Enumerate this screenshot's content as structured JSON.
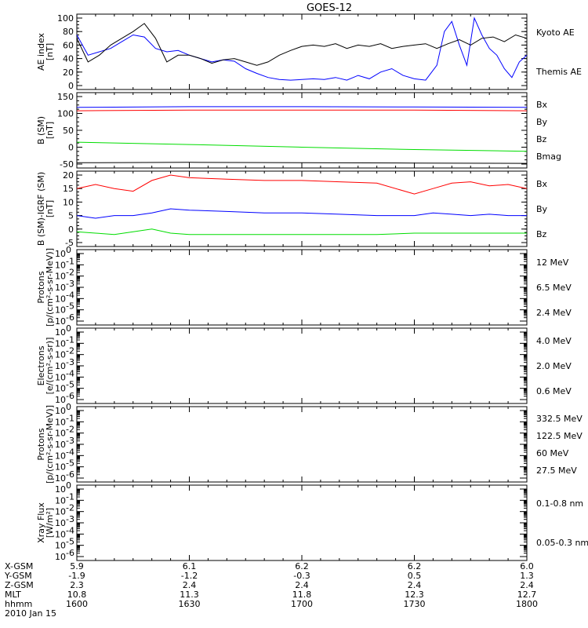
{
  "title": "GOES-12",
  "colors": {
    "black": "#000000",
    "blue": "#0000ff",
    "red": "#ff0000",
    "green": "#00dd00",
    "darkred": "#cc0000",
    "yellow": "#ffd400",
    "cyan": "#00a0ff"
  },
  "ephemeris": {
    "row_labels": [
      "X-GSM",
      "Y-GSM",
      "Z-GSM",
      "MLT",
      "hhmm"
    ],
    "date": "2010 Jan 15",
    "columns": [
      {
        "values": [
          "5.9",
          "-1.9",
          "2.3",
          "10.8",
          "1600"
        ]
      },
      {
        "values": [
          "6.1",
          "-1.2",
          "2.4",
          "11.3",
          "1630"
        ]
      },
      {
        "values": [
          "6.2",
          "-0.3",
          "2.4",
          "11.8",
          "1700"
        ]
      },
      {
        "values": [
          "6.2",
          "0.5",
          "2.4",
          "12.3",
          "1730"
        ]
      },
      {
        "values": [
          "6.0",
          "1.3",
          "2.4",
          "12.7",
          "1800"
        ]
      }
    ]
  },
  "chart_data": [
    {
      "type": "line",
      "ylabel": "AE index\n[nT]",
      "ylim": [
        0,
        100
      ],
      "yticks": [
        "0",
        "20",
        "40",
        "60",
        "80",
        "100"
      ],
      "xlim": [
        0,
        120
      ],
      "log": false,
      "series": [
        {
          "name": "Kyoto AE",
          "color": "#0000ff",
          "x": [
            0,
            3,
            6,
            9,
            12,
            15,
            18,
            21,
            24,
            27,
            30,
            33,
            36,
            39,
            42,
            45,
            48,
            51,
            54,
            57,
            60,
            63,
            66,
            69,
            72,
            75,
            78,
            81,
            84,
            87,
            90,
            93,
            96,
            98,
            100,
            102,
            104,
            106,
            108,
            110,
            112,
            114,
            116,
            118,
            120
          ],
          "y": [
            75,
            45,
            50,
            55,
            65,
            75,
            72,
            55,
            50,
            52,
            45,
            40,
            35,
            38,
            36,
            25,
            18,
            12,
            9,
            8,
            9,
            10,
            9,
            12,
            8,
            15,
            10,
            20,
            25,
            15,
            10,
            8,
            30,
            80,
            95,
            60,
            30,
            100,
            75,
            55,
            45,
            25,
            12,
            35,
            45
          ]
        },
        {
          "name": "Themis AE",
          "color": "#000000",
          "x": [
            0,
            3,
            6,
            9,
            12,
            15,
            18,
            21,
            24,
            27,
            30,
            33,
            36,
            39,
            42,
            45,
            48,
            51,
            54,
            57,
            60,
            63,
            66,
            69,
            72,
            75,
            78,
            81,
            84,
            87,
            90,
            93,
            96,
            99,
            102,
            105,
            108,
            111,
            114,
            117,
            120
          ],
          "y": [
            70,
            35,
            45,
            60,
            70,
            80,
            92,
            70,
            35,
            45,
            45,
            40,
            33,
            38,
            40,
            35,
            30,
            35,
            45,
            52,
            58,
            60,
            58,
            62,
            55,
            60,
            58,
            62,
            55,
            58,
            60,
            62,
            55,
            62,
            68,
            60,
            70,
            72,
            65,
            75,
            70
          ]
        }
      ]
    },
    {
      "type": "line",
      "ylabel": "B (SM)\n[nT]",
      "ylim": [
        -50,
        150
      ],
      "yticks": [
        "-50",
        "0",
        "50",
        "100",
        "150"
      ],
      "xlim": [
        0,
        120
      ],
      "log": false,
      "series": [
        {
          "name": "Bx",
          "color": "#0000ff",
          "x": [
            0,
            30,
            60,
            90,
            120
          ],
          "y": [
            118,
            120,
            120,
            119,
            118
          ]
        },
        {
          "name": "By",
          "color": "#00dd00",
          "x": [
            0,
            30,
            60,
            90,
            120
          ],
          "y": [
            15,
            8,
            0,
            -7,
            -12
          ]
        },
        {
          "name": "Bz",
          "color": "#ff0000",
          "x": [
            0,
            30,
            60,
            90,
            120
          ],
          "y": [
            108,
            110,
            110,
            110,
            108
          ]
        },
        {
          "name": "Bmag",
          "color": "#000000",
          "x": [
            0,
            30,
            60,
            90,
            120
          ],
          "y": [
            -46,
            -45,
            -46,
            -47,
            -48
          ]
        }
      ]
    },
    {
      "type": "line",
      "ylabel": "B (SM)-IGRF (SM)\n[nT]",
      "ylim": [
        -5,
        20
      ],
      "yticks": [
        "-5",
        "0",
        "5",
        "10",
        "15",
        "20"
      ],
      "xlim": [
        0,
        120
      ],
      "log": false,
      "series": [
        {
          "name": "Bx",
          "color": "#0000ff",
          "x": [
            0,
            5,
            10,
            15,
            20,
            25,
            30,
            40,
            50,
            60,
            70,
            80,
            90,
            95,
            100,
            105,
            110,
            115,
            120
          ],
          "y": [
            5,
            4,
            5,
            5,
            6,
            7.5,
            7,
            6.5,
            6,
            6,
            5.5,
            5,
            5,
            6,
            5.5,
            5,
            5.5,
            5,
            5
          ]
        },
        {
          "name": "By",
          "color": "#00dd00",
          "x": [
            0,
            5,
            10,
            15,
            20,
            25,
            30,
            40,
            50,
            60,
            70,
            80,
            90,
            100,
            110,
            120
          ],
          "y": [
            -1,
            -1.5,
            -2,
            -1,
            0,
            -1.5,
            -2,
            -2,
            -2,
            -2,
            -2,
            -2,
            -1.5,
            -1.5,
            -1.5,
            -1.5
          ]
        },
        {
          "name": "Bz",
          "color": "#ff0000",
          "x": [
            0,
            5,
            10,
            15,
            20,
            25,
            30,
            40,
            50,
            60,
            70,
            80,
            90,
            95,
            100,
            105,
            110,
            115,
            120
          ],
          "y": [
            15,
            16.5,
            15,
            14,
            18,
            20,
            19,
            18.5,
            18,
            18,
            17.5,
            17,
            13,
            15,
            17,
            17.5,
            16,
            16.5,
            15
          ]
        }
      ]
    },
    {
      "type": "line",
      "ylabel": "Protons\n[p/(cm²-s-sr-MeV)]",
      "ylim_exp": [
        -6,
        0
      ],
      "yticks_exp": [
        "-6",
        "-5",
        "-4",
        "-3",
        "-2",
        "-1",
        "0"
      ],
      "log": true,
      "series": [
        {
          "name": "12 MeV",
          "color": "#cc0000"
        },
        {
          "name": "6.5 MeV",
          "color": "#00dd00"
        },
        {
          "name": "2.4 MeV",
          "color": "#000000"
        }
      ]
    },
    {
      "type": "line",
      "ylabel": "Electrons\n[e/(cm²-s-sr)]",
      "ylim_exp": [
        -6,
        0
      ],
      "yticks_exp": [
        "-6",
        "-5",
        "-4",
        "-3",
        "-2",
        "-1",
        "0"
      ],
      "log": true,
      "series": [
        {
          "name": "4.0 MeV",
          "color": "#cc0000"
        },
        {
          "name": "2.0 MeV",
          "color": "#00dd00"
        },
        {
          "name": "0.6 MeV",
          "color": "#000000"
        }
      ]
    },
    {
      "type": "line",
      "ylabel": "Protons\n[p/(cm²-s-sr-MeV)]",
      "ylim_exp": [
        -6,
        0
      ],
      "yticks_exp": [
        "-6",
        "-5",
        "-4",
        "-3",
        "-2",
        "-1",
        "0"
      ],
      "log": true,
      "series": [
        {
          "name": "332.5 MeV",
          "color": "#cc0000"
        },
        {
          "name": "122.5 MeV",
          "color": "#ffd400"
        },
        {
          "name": "60 MeV",
          "color": "#00a0ff"
        },
        {
          "name": "27.5 MeV",
          "color": "#000000"
        }
      ]
    },
    {
      "type": "line",
      "ylabel": "Xray Flux\n[W/m²]",
      "ylim_exp": [
        -6,
        0
      ],
      "yticks_exp": [
        "-6",
        "-5",
        "-4",
        "-3",
        "-2",
        "-1",
        "0"
      ],
      "log": true,
      "series": [
        {
          "name": "0.1-0.8 nm",
          "color": "#cc0000"
        },
        {
          "name": "0.05-0.3 nm",
          "color": "#0000ff"
        }
      ]
    }
  ]
}
